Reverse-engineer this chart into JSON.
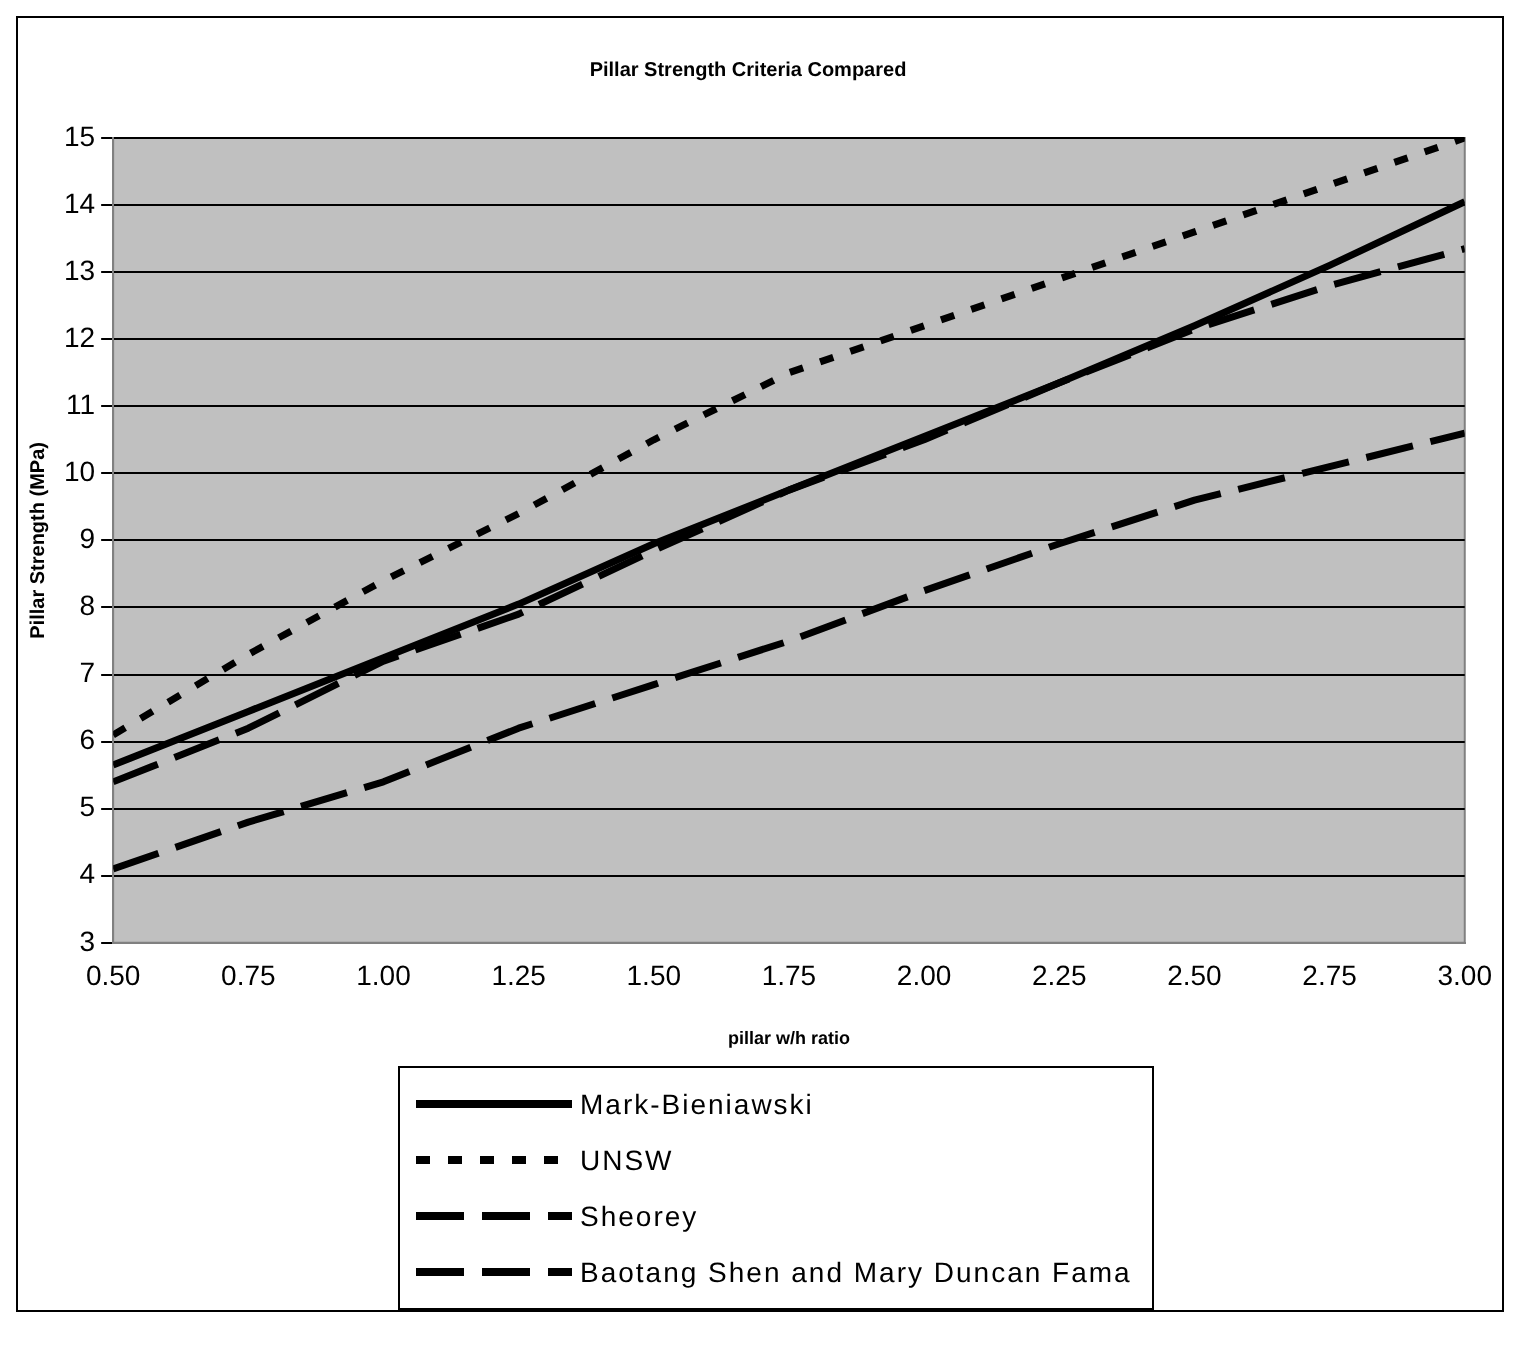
{
  "chart_data": {
    "type": "line",
    "title": "Pillar Strength Criteria Compared",
    "xlabel": "pillar w/h ratio",
    "ylabel": "Pillar Strength (MPa)",
    "x": [
      0.5,
      0.75,
      1.0,
      1.25,
      1.5,
      1.75,
      2.0,
      2.25,
      2.5,
      2.75,
      3.0
    ],
    "series": [
      {
        "name": "Mark-Bieniawski",
        "color": "#000000",
        "line_style": "solid",
        "values": [
          5.65,
          6.45,
          7.25,
          8.05,
          8.95,
          9.75,
          10.55,
          11.35,
          12.2,
          13.1,
          14.05
        ]
      },
      {
        "name": "UNSW",
        "color": "#000000",
        "line_style": "dotted",
        "values": [
          6.1,
          7.3,
          8.4,
          9.4,
          10.5,
          11.5,
          12.2,
          12.9,
          13.6,
          14.3,
          15.0
        ]
      },
      {
        "name": "Sheorey",
        "color": "#000000",
        "line_style": "dashed",
        "values": [
          5.4,
          6.2,
          7.2,
          7.9,
          8.85,
          9.75,
          10.5,
          11.35,
          12.15,
          12.8,
          13.35
        ]
      },
      {
        "name": "Baotang Shen and Mary Duncan Fama",
        "color": "#000000",
        "line_style": "dashed",
        "values": [
          4.1,
          4.8,
          5.4,
          6.2,
          6.85,
          7.5,
          8.25,
          8.95,
          9.6,
          10.1,
          10.6
        ]
      }
    ],
    "xlim": [
      0.5,
      3.0
    ],
    "xticks": [
      {
        "value": 0.5,
        "label": "0.50"
      },
      {
        "value": 0.75,
        "label": "0.75"
      },
      {
        "value": 1.0,
        "label": "1.00"
      },
      {
        "value": 1.25,
        "label": "1.25"
      },
      {
        "value": 1.5,
        "label": "1.50"
      },
      {
        "value": 1.75,
        "label": "1.75"
      },
      {
        "value": 2.0,
        "label": "2.00"
      },
      {
        "value": 2.25,
        "label": "2.25"
      },
      {
        "value": 2.5,
        "label": "2.50"
      },
      {
        "value": 2.75,
        "label": "2.75"
      },
      {
        "value": 3.0,
        "label": "3.00"
      }
    ],
    "ylim": [
      3,
      15
    ],
    "yticks": [
      3,
      4,
      5,
      6,
      7,
      8,
      9,
      10,
      11,
      12,
      13,
      14,
      15
    ],
    "grid": "y",
    "legend": "bottom",
    "marker": "none"
  }
}
